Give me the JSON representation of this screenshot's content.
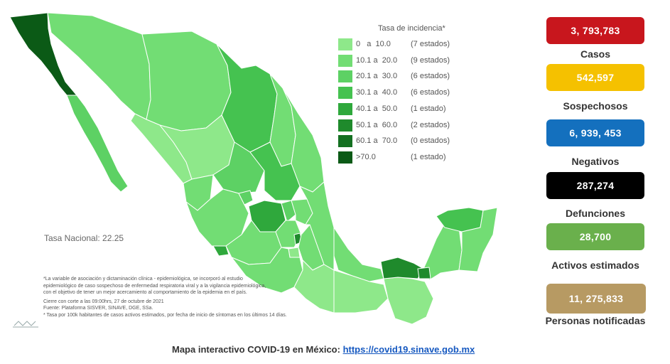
{
  "legend": {
    "title": "Tasa de incidencia*",
    "rows": [
      {
        "range": "0   a  10.0",
        "count": "(7 estados)",
        "color": "#8ee88a"
      },
      {
        "range": "10.1 a  20.0",
        "count": "(9 estados)",
        "color": "#72dd74"
      },
      {
        "range": "20.1 a  30.0",
        "count": "(6 estados)",
        "color": "#5dd164"
      },
      {
        "range": "30.1 a  40.0",
        "count": "(6 estados)",
        "color": "#45c250"
      },
      {
        "range": "40.1 a  50.0",
        "count": "(1 estado)",
        "color": "#2fa83c"
      },
      {
        "range": "50.1 a  60.0",
        "count": "(2 estados)",
        "color": "#1f8a2c"
      },
      {
        "range": "60.1 a  70.0",
        "count": "(0 estados)",
        "color": "#147021"
      },
      {
        "range": ">70.0",
        "count": "(1 estado)",
        "color": "#0b5a16"
      }
    ]
  },
  "tasa_nacional": "Tasa Nacional: 22.25",
  "notes": [
    "*La variable de asociación y dictaminación clínica - epidemiológica, se incorporó al estudio",
    "epidemiológico de caso sospechoso de enfermedad respiratoria viral y a la vigilancia epidemiológica,",
    "con el objetivo de tener un mejor acercamiento al comportamiento de la epidemia en el país.",
    "Cierre con corte a las 09:00hrs, 27 de octubre de 2021",
    "Fuente: Plataforma SISVER, SINAVE, DGE, SSa.",
    "* Tasa por 100k habitantes de casos activos estimados, por fecha de inicio de síntomas en los últimos 14 días."
  ],
  "stats": [
    {
      "value": "3, 793,783",
      "label": "Casos",
      "color": "#c8161d"
    },
    {
      "value": "542,597",
      "label": "Sospechosos",
      "color": "#f5c100"
    },
    {
      "value": "6, 939, 453",
      "label": "Negativos",
      "color": "#1470be"
    },
    {
      "value": "287,274",
      "label": "Defunciones",
      "color": "#000000"
    },
    {
      "value": "28,700",
      "label": "Activos estimados",
      "color": "#6ab04c"
    },
    {
      "value": "11, 275,833",
      "label": "Personas notificadas",
      "color": "#b79a63"
    }
  ],
  "footer": {
    "text": "Mapa interactivo COVID-19 en México: ",
    "link": "https://covid19.sinave.gob.mx"
  }
}
